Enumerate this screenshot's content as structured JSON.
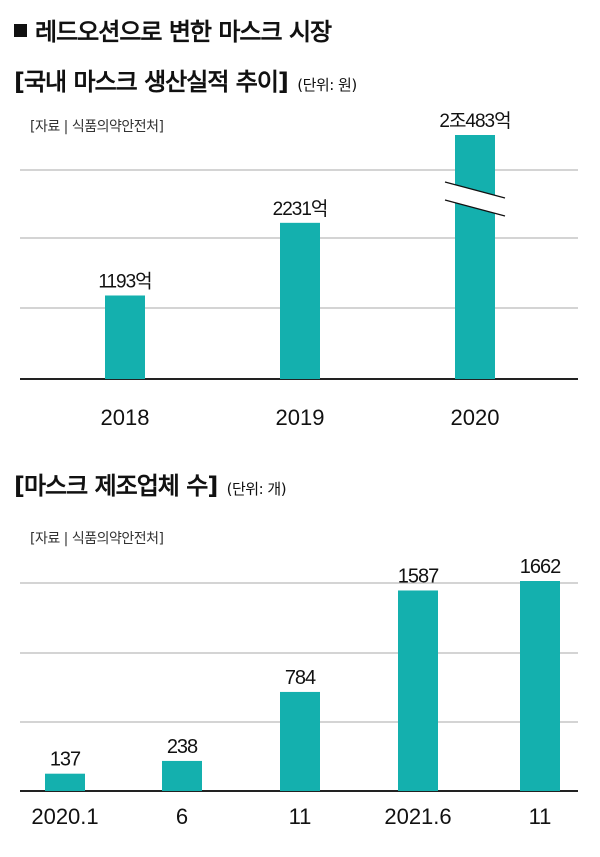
{
  "headline": "레드오션으로 변한 마스크 시장",
  "charts": [
    {
      "title": "[국내 마스크 생산실적 추이]",
      "unit": "(단위: 원)",
      "source": "[자료 | 식품의약안전처]"
    },
    {
      "title": "[마스크 제조업체 수]",
      "unit": "(단위: 개)",
      "source": "[자료 | 식품의약안전처]"
    }
  ],
  "chart_data": [
    {
      "type": "bar",
      "title": "[국내 마스크 생산실적 추이]",
      "categories": [
        "2018",
        "2019",
        "2020"
      ],
      "values": [
        1193,
        2231,
        20483
      ],
      "data_labels": [
        "1193억",
        "2231억",
        "2조483억"
      ],
      "axis_break": true,
      "grid": true,
      "color": "#14b0ae"
    },
    {
      "type": "bar",
      "title": "[마스크 제조업체 수]",
      "categories": [
        "2020.1",
        "6",
        "11",
        "2021.6",
        "11"
      ],
      "values": [
        137,
        238,
        784,
        1587,
        1662
      ],
      "data_labels": [
        "137",
        "238",
        "784",
        "1587",
        "1662"
      ],
      "grid": true,
      "color": "#14b0ae"
    }
  ]
}
